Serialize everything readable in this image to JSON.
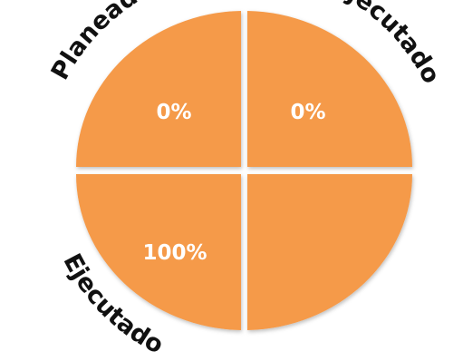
{
  "chart_data": {
    "type": "pie",
    "quadrants": [
      {
        "value_label": "0%"
      },
      {
        "value_label": "0%"
      },
      {
        "value_label": "100%"
      },
      {
        "value_label": ""
      }
    ],
    "side_labels": [
      "Planeado",
      "Ejecutado",
      "Ejecutado"
    ],
    "colors": {
      "fill": "#F59A4A",
      "divider": "#ffffff",
      "text": "#ffffff",
      "label": "#111111"
    }
  }
}
